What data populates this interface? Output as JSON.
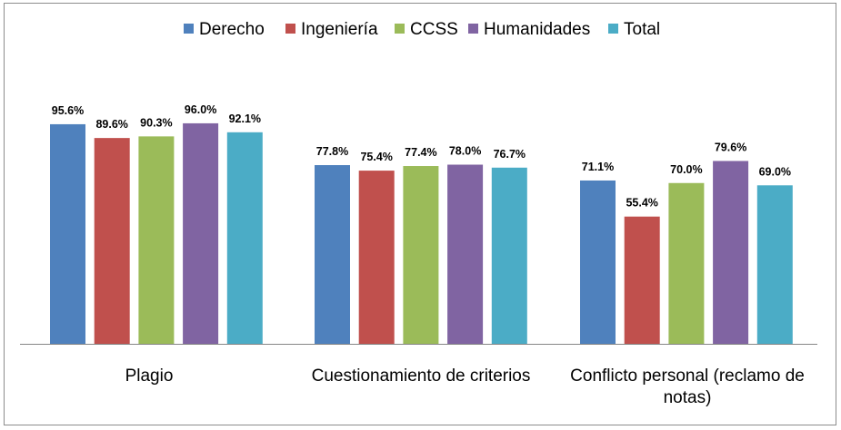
{
  "chart_data": {
    "type": "bar",
    "title": "",
    "xlabel": "",
    "ylabel": "",
    "ylim": [
      0,
      100
    ],
    "grid": false,
    "legend_position": "top",
    "categories": [
      [
        "Plagio"
      ],
      [
        "Cuestionamiento de criterios"
      ],
      [
        "Conflicto personal  (reclamo de",
        "notas)"
      ]
    ],
    "series": [
      {
        "name": "Derecho",
        "color": "#4f81bd",
        "values": [
          95.6,
          77.8,
          71.1
        ],
        "labels": [
          "95.6%",
          "77.8%",
          "71.1%"
        ]
      },
      {
        "name": "Ingeniería",
        "color": "#c0504d",
        "values": [
          89.6,
          75.4,
          55.4
        ],
        "labels": [
          "89.6%",
          "75.4%",
          "55.4%"
        ]
      },
      {
        "name": "CCSS",
        "color": "#9bbb59",
        "values": [
          90.3,
          77.4,
          70.0
        ],
        "labels": [
          "90.3%",
          "77.4%",
          "70.0%"
        ]
      },
      {
        "name": "Humanidades",
        "color": "#8064a2",
        "values": [
          96.0,
          78.0,
          79.6
        ],
        "labels": [
          "96.0%",
          "78.0%",
          "79.6%"
        ]
      },
      {
        "name": "Total",
        "color": "#4bacc6",
        "values": [
          92.1,
          76.7,
          69.0
        ],
        "labels": [
          "92.1%",
          "76.7%",
          "69.0%"
        ]
      }
    ]
  }
}
